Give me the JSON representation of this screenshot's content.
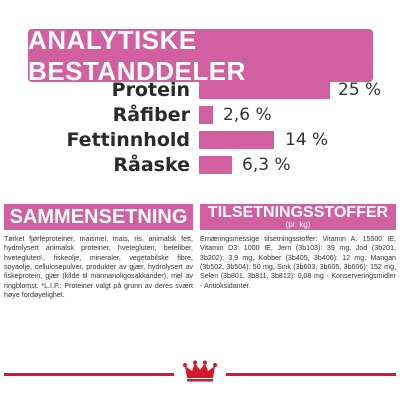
{
  "header": {
    "title": "ANALYTISKE BESTANDDELER"
  },
  "analysis": [
    {
      "label": "Protein",
      "value": "25 %",
      "percent": 25
    },
    {
      "label": "Råfiber",
      "value": "2,6 %",
      "percent": 2.6
    },
    {
      "label": "Fettinnhold",
      "value": "14 %",
      "percent": 14
    },
    {
      "label": "Råaske",
      "value": "6,3 %",
      "percent": 6.3
    }
  ],
  "composition": {
    "title": "SAMMENSETNING",
    "text": "Tørket fjørfeproteiner, maismel, mais, ris, animalsk fett, hydrolysert animalsk proteiner, hvetegluten, betefiber, hveteglutenᴸ, fiskeolje, mineraler, vegetabilske fibre, soyaolje, cellulosepulver, produkter av gjær, hydrolysert av fiskeprotein, gjær (kilde til mannanoligosakkarider), mel av ringblomst. *L.I.P.: Proteiner valgt på grunn av deres svært høye fordøyelighet."
  },
  "additives": {
    "title": "TILSETNINGSSTOFFER",
    "subtitle": "(pr. kg)",
    "text": "Ernæringsmessige tilsetningsstoffer: Vitamin A: 15500 IE, Vitamin D3: 1000 IE, Jern (3b103): 39 mg, Jod (3b201, 3b202): 3,9 mg, Kobber (3b405, 3b406): 12 mg, Mangan (3b502, 3b504): 50 mg, Sink (3b603, 3b605, 3b606): 152 mg, Selen (3b801, 3b811, 3b812): 0,08 mg - Konserveringsmidler - Antioksidanter."
  },
  "colors": {
    "accent": "#d25fa0",
    "brand_red": "#d7182a"
  },
  "logo": {
    "icon": "royal-canin-crown-icon"
  }
}
